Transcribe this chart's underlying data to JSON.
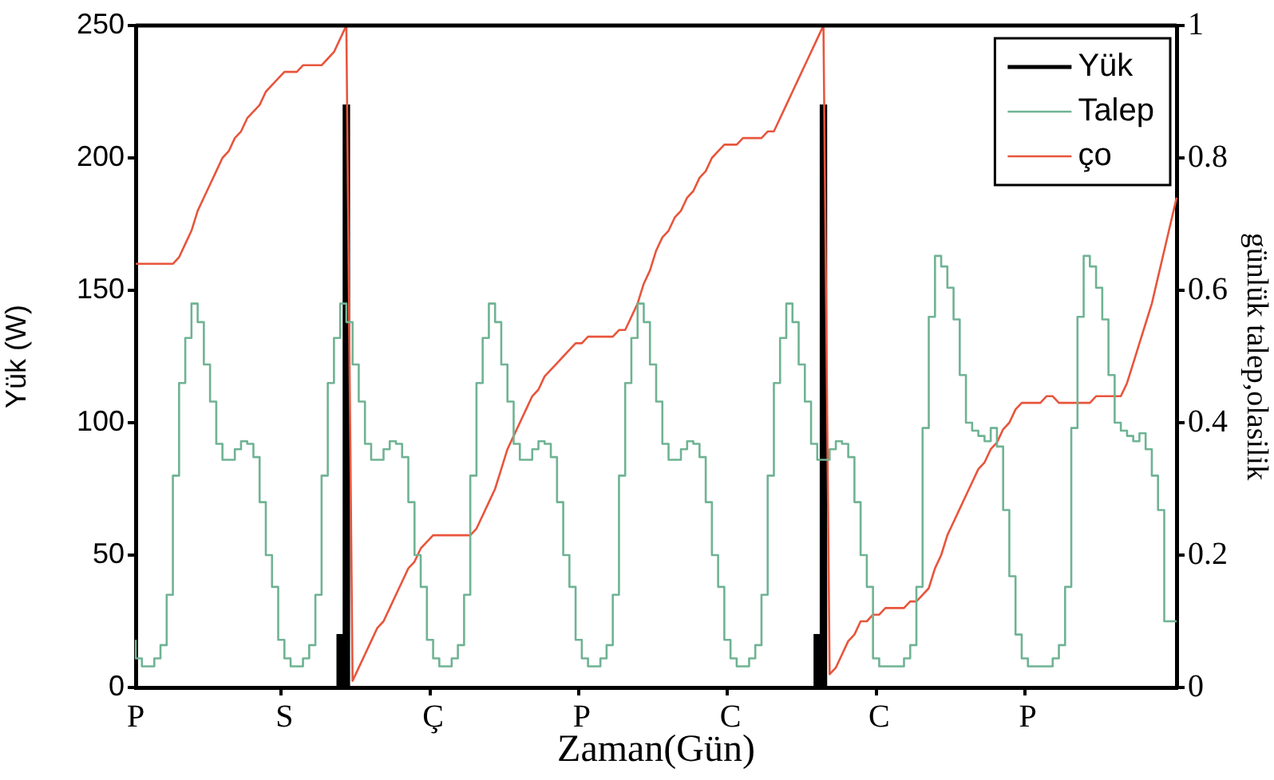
{
  "chart_data": {
    "type": "line",
    "xlabel": "Zaman(Gün)",
    "ylabel": "Yük (W)",
    "y2label": "günlük talep,olasilik",
    "categories": [
      "P",
      null,
      null,
      null,
      null,
      null,
      null,
      null,
      null,
      null,
      null,
      null,
      null,
      null,
      null,
      null,
      null,
      null,
      null,
      null,
      null,
      null,
      null,
      null,
      "S",
      null,
      null,
      null,
      null,
      null,
      null,
      null,
      null,
      null,
      null,
      null,
      null,
      null,
      null,
      null,
      null,
      null,
      null,
      null,
      null,
      null,
      null,
      null,
      "Ç",
      null,
      null,
      null,
      null,
      null,
      null,
      null,
      null,
      null,
      null,
      null,
      null,
      null,
      null,
      null,
      null,
      null,
      null,
      null,
      null,
      null,
      null,
      null,
      "P",
      null,
      null,
      null,
      null,
      null,
      null,
      null,
      null,
      null,
      null,
      null,
      null,
      null,
      null,
      null,
      null,
      null,
      null,
      null,
      null,
      null,
      null,
      null,
      "C",
      null,
      null,
      null,
      null,
      null,
      null,
      null,
      null,
      null,
      null,
      null,
      null,
      null,
      null,
      null,
      null,
      null,
      null,
      null,
      null,
      null,
      null,
      null,
      "C",
      null,
      null,
      null,
      null,
      null,
      null,
      null,
      null,
      null,
      null,
      null,
      null,
      null,
      null,
      null,
      null,
      null,
      null,
      null,
      null,
      null,
      null,
      null,
      "P",
      null,
      null,
      null,
      null,
      null,
      null,
      null,
      null,
      null,
      null,
      null,
      null,
      null,
      null,
      null,
      null,
      null,
      null,
      null,
      null,
      null,
      null,
      null,
      null
    ],
    "ylim": [
      0,
      250
    ],
    "yticks": [
      0,
      50,
      100,
      150,
      200,
      250
    ],
    "y2lim": [
      0,
      1
    ],
    "y2ticks": [
      0,
      0.2,
      0.4,
      0.6,
      0.8,
      1
    ],
    "legend": "top right",
    "series": [
      {
        "name": "Yük",
        "type": "bar",
        "color": "#000000",
        "values": [
          null,
          null,
          null,
          null,
          null,
          null,
          null,
          null,
          null,
          null,
          null,
          null,
          null,
          null,
          null,
          null,
          null,
          null,
          null,
          null,
          null,
          null,
          null,
          null,
          null,
          null,
          null,
          null,
          null,
          null,
          null,
          null,
          null,
          20,
          220,
          null,
          null,
          null,
          null,
          null,
          null,
          null,
          null,
          null,
          null,
          null,
          null,
          null,
          null,
          null,
          null,
          null,
          null,
          null,
          null,
          null,
          null,
          null,
          null,
          null,
          null,
          null,
          null,
          null,
          null,
          null,
          null,
          null,
          null,
          null,
          null,
          null,
          null,
          null,
          null,
          null,
          null,
          null,
          null,
          null,
          null,
          null,
          null,
          null,
          null,
          null,
          null,
          null,
          null,
          null,
          null,
          null,
          null,
          null,
          null,
          null,
          null,
          null,
          null,
          null,
          null,
          null,
          null,
          null,
          null,
          null,
          null,
          null,
          null,
          null,
          20,
          220,
          null,
          null,
          null,
          null,
          null,
          null,
          null,
          null,
          null,
          null,
          null,
          null,
          null,
          null,
          null,
          null,
          null,
          null,
          null,
          null,
          null,
          null,
          null,
          null,
          null,
          null,
          null,
          null,
          null,
          null,
          null,
          null,
          null,
          null,
          null,
          null,
          null,
          null,
          null,
          null,
          null,
          null,
          null,
          null,
          null,
          null,
          null,
          null,
          null,
          null,
          null,
          null,
          null,
          null,
          null,
          null,
          null
        ]
      },
      {
        "name": "Talep",
        "type": "step",
        "color": "#6fb393",
        "values": [
          18,
          11,
          8,
          8,
          11,
          16,
          35,
          80,
          115,
          132,
          145,
          138,
          122,
          108,
          92,
          86,
          86,
          90,
          93,
          92,
          87,
          70,
          50,
          38,
          18,
          11,
          8,
          8,
          11,
          16,
          35,
          80,
          115,
          132,
          145,
          138,
          122,
          108,
          92,
          86,
          86,
          90,
          93,
          92,
          87,
          70,
          50,
          38,
          18,
          11,
          8,
          8,
          11,
          16,
          35,
          80,
          115,
          132,
          145,
          138,
          122,
          108,
          92,
          86,
          86,
          90,
          93,
          92,
          87,
          70,
          50,
          38,
          18,
          11,
          8,
          8,
          11,
          16,
          35,
          80,
          115,
          132,
          145,
          138,
          122,
          108,
          92,
          86,
          86,
          90,
          93,
          92,
          87,
          70,
          50,
          38,
          18,
          11,
          8,
          8,
          11,
          16,
          35,
          80,
          115,
          132,
          145,
          138,
          122,
          108,
          92,
          86,
          86,
          90,
          93,
          92,
          87,
          70,
          50,
          38,
          11,
          8,
          8,
          8,
          8,
          11,
          16,
          38,
          98,
          140,
          163,
          159,
          151,
          139,
          118,
          100,
          97,
          95,
          93,
          98,
          91,
          67,
          42,
          20,
          11,
          8,
          8,
          8,
          8,
          11,
          16,
          38,
          98,
          140,
          163,
          159,
          151,
          139,
          118,
          100,
          97,
          95,
          93,
          96,
          90,
          80,
          67,
          25,
          25
        ]
      },
      {
        "name": "ço",
        "axis": "y2",
        "color": "#e8553c",
        "values": [
          0.64,
          0.64,
          0.64,
          0.64,
          0.64,
          0.64,
          0.64,
          0.65,
          0.67,
          0.69,
          0.72,
          0.74,
          0.76,
          0.78,
          0.8,
          0.81,
          0.83,
          0.84,
          0.86,
          0.87,
          0.88,
          0.9,
          0.91,
          0.92,
          0.93,
          0.93,
          0.93,
          0.94,
          0.94,
          0.94,
          0.94,
          0.95,
          0.96,
          0.98,
          1,
          0.01,
          0.03,
          0.05,
          0.07,
          0.09,
          0.1,
          0.12,
          0.14,
          0.16,
          0.18,
          0.19,
          0.21,
          0.22,
          0.23,
          0.23,
          0.23,
          0.23,
          0.23,
          0.23,
          0.23,
          0.24,
          0.26,
          0.28,
          0.3,
          0.33,
          0.36,
          0.38,
          0.4,
          0.42,
          0.44,
          0.45,
          0.47,
          0.48,
          0.49,
          0.5,
          0.51,
          0.52,
          0.52,
          0.53,
          0.53,
          0.53,
          0.53,
          0.53,
          0.54,
          0.54,
          0.56,
          0.58,
          0.61,
          0.63,
          0.66,
          0.68,
          0.69,
          0.71,
          0.72,
          0.74,
          0.75,
          0.77,
          0.78,
          0.8,
          0.81,
          0.82,
          0.82,
          0.82,
          0.83,
          0.83,
          0.83,
          0.83,
          0.84,
          0.84,
          0.86,
          0.88,
          0.9,
          0.92,
          0.94,
          0.96,
          0.98,
          1,
          0.02,
          0.03,
          0.05,
          0.07,
          0.08,
          0.1,
          0.1,
          0.11,
          0.11,
          0.12,
          0.12,
          0.12,
          0.12,
          0.13,
          0.13,
          0.14,
          0.15,
          0.18,
          0.2,
          0.23,
          0.25,
          0.27,
          0.29,
          0.31,
          0.33,
          0.34,
          0.36,
          0.37,
          0.39,
          0.4,
          0.42,
          0.43,
          0.43,
          0.43,
          0.43,
          0.44,
          0.44,
          0.43,
          0.43,
          0.43,
          0.43,
          0.43,
          0.43,
          0.44,
          0.44,
          0.44,
          0.44,
          0.44,
          0.46,
          0.49,
          0.52,
          0.55,
          0.58,
          0.62,
          0.66,
          0.7,
          0.74
        ]
      }
    ]
  }
}
